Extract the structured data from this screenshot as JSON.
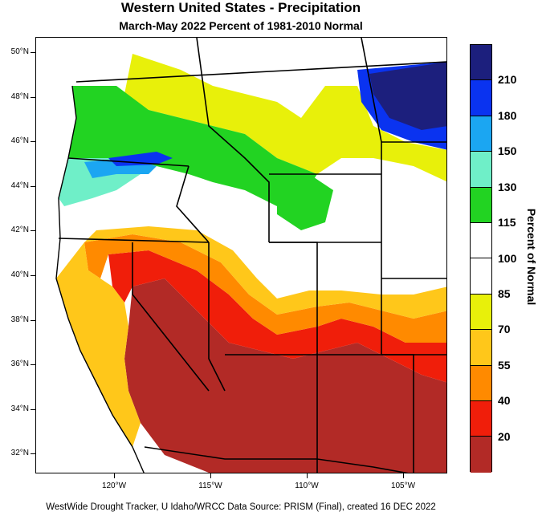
{
  "title": "Western United States - Precipitation",
  "subtitle": "March-May 2022  Percent of 1981-2010 Normal",
  "footer": "WestWide Drought Tracker, U Idaho/WRCC Data Source: PRISM (Final), created 16 DEC 2022",
  "legend": {
    "title": "Percent of Normal",
    "labels": [
      "20",
      "40",
      "55",
      "70",
      "85",
      "100",
      "115",
      "130",
      "150",
      "180",
      "210"
    ],
    "bins": [
      {
        "color": "#1c1f7d"
      },
      {
        "color": "#0a33f0"
      },
      {
        "color": "#1ba6f2"
      },
      {
        "color": "#6fefc8"
      },
      {
        "color": "#22d322"
      },
      {
        "color": "#ffffff"
      },
      {
        "color": "#ffffff"
      },
      {
        "color": "#e8f00a"
      },
      {
        "color": "#ffc71a"
      },
      {
        "color": "#ff8a00"
      },
      {
        "color": "#f01e0a"
      },
      {
        "color": "#b22a26"
      }
    ]
  },
  "axes": {
    "lat_labels": [
      "50°N",
      "48°N",
      "46°N",
      "44°N",
      "42°N",
      "40°N",
      "38°N",
      "36°N",
      "34°N",
      "32°N"
    ],
    "lon_labels": [
      "120°W",
      "115°W",
      "110°W",
      "105°W"
    ]
  },
  "map_colors": {
    "ocean": "#ffffff",
    "deep_red": "#b22a26",
    "red": "#f01e0a",
    "orange": "#ff8a00",
    "light_orange": "#ffc71a",
    "yellow": "#e8f00a",
    "white": "#ffffff",
    "green": "#22d322",
    "aqua": "#6fefc8",
    "sky": "#1ba6f2",
    "blue": "#0a33f0",
    "navy": "#1c1f7d",
    "border": "#000000"
  }
}
